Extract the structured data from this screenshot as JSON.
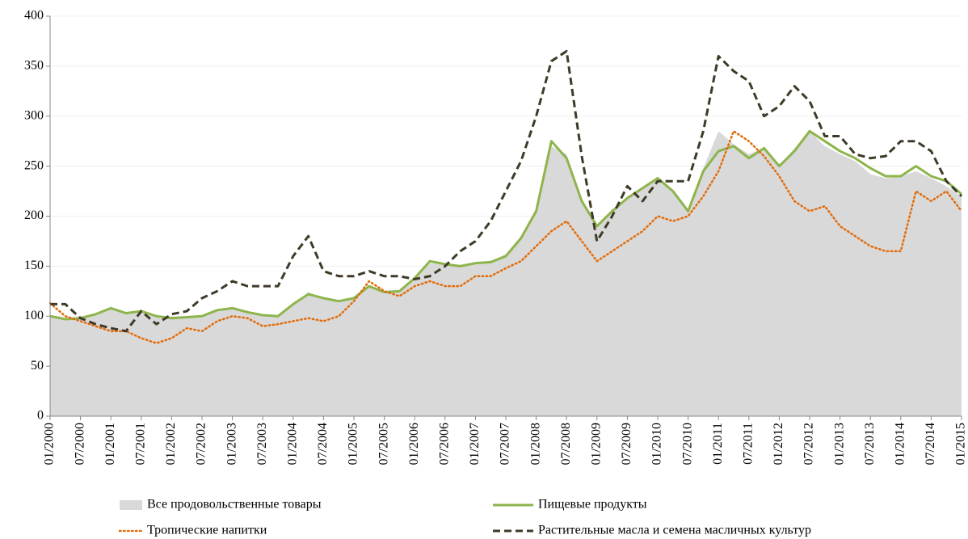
{
  "chart_data": {
    "type": "line",
    "categories": [
      "01/2000",
      null,
      "07/2000",
      null,
      "01/2001",
      null,
      "07/2001",
      null,
      "01/2002",
      null,
      "07/2002",
      null,
      "01/2003",
      null,
      "07/2003",
      null,
      "01/2004",
      null,
      "07/2004",
      null,
      "01/2005",
      null,
      "07/2005",
      null,
      "01/2006",
      null,
      "07/2006",
      null,
      "01/2007",
      null,
      "07/2007",
      null,
      "01/2008",
      null,
      "07/2008",
      null,
      "01/2009",
      null,
      "07/2009",
      null,
      "01/2010",
      null,
      "07/2010",
      null,
      "01/2011",
      null,
      "07/2011",
      null,
      "01/2012",
      null,
      "07/2012",
      null,
      "01/2013",
      null,
      "07/2013",
      null,
      "01/2014",
      null,
      "07/2014",
      null,
      "01/2015"
    ],
    "series": [
      {
        "name": "Все продовольственные товары",
        "color": "#d9d9d9",
        "style": "area",
        "values": [
          100,
          97,
          98,
          102,
          108,
          103,
          105,
          100,
          98,
          99,
          100,
          106,
          108,
          104,
          101,
          100,
          112,
          124,
          118,
          115,
          118,
          130,
          124,
          125,
          138,
          153,
          152,
          150,
          153,
          155,
          162,
          180,
          208,
          270,
          262,
          215,
          190,
          205,
          220,
          228,
          238,
          225,
          205,
          248,
          285,
          272,
          262,
          268,
          250,
          268,
          285,
          270,
          262,
          255,
          242,
          238,
          240,
          245,
          238,
          230,
          220
        ]
      },
      {
        "name": "Пищевые продукты",
        "color": "#8db54b",
        "style": "line",
        "values": [
          100,
          97,
          98,
          102,
          108,
          103,
          105,
          100,
          98,
          99,
          100,
          106,
          108,
          104,
          101,
          100,
          112,
          122,
          118,
          115,
          118,
          130,
          124,
          125,
          138,
          155,
          152,
          150,
          153,
          154,
          160,
          178,
          205,
          275,
          258,
          215,
          190,
          205,
          218,
          228,
          238,
          225,
          205,
          245,
          265,
          270,
          258,
          268,
          250,
          265,
          285,
          275,
          265,
          258,
          248,
          240,
          240,
          250,
          240,
          235,
          222
        ]
      },
      {
        "name": "Тропические напитки",
        "color": "#e36c0a",
        "style": "dotted",
        "values": [
          113,
          100,
          95,
          90,
          85,
          85,
          78,
          73,
          78,
          88,
          85,
          95,
          100,
          98,
          90,
          92,
          95,
          98,
          95,
          100,
          115,
          135,
          125,
          120,
          130,
          135,
          130,
          130,
          140,
          140,
          148,
          155,
          170,
          185,
          195,
          175,
          155,
          165,
          175,
          185,
          200,
          195,
          200,
          220,
          245,
          285,
          275,
          260,
          240,
          215,
          205,
          210,
          190,
          180,
          170,
          165,
          165,
          225,
          215,
          225,
          205
        ]
      },
      {
        "name": "Растительные масла и семена масличных культур",
        "color": "#3f3a28",
        "style": "dashed",
        "values": [
          112,
          112,
          98,
          92,
          88,
          85,
          105,
          92,
          102,
          105,
          118,
          125,
          135,
          130,
          130,
          130,
          160,
          180,
          145,
          140,
          140,
          145,
          140,
          140,
          137,
          140,
          150,
          165,
          175,
          195,
          225,
          255,
          300,
          355,
          365,
          260,
          175,
          200,
          230,
          215,
          235,
          235,
          235,
          285,
          360,
          345,
          335,
          300,
          310,
          330,
          315,
          280,
          280,
          262,
          258,
          260,
          275,
          275,
          265,
          235,
          220
        ]
      }
    ],
    "ylim": [
      0,
      400
    ],
    "yticks": [
      0,
      50,
      100,
      150,
      200,
      250,
      300,
      350,
      400
    ],
    "grid": true,
    "legend": "bottom"
  }
}
